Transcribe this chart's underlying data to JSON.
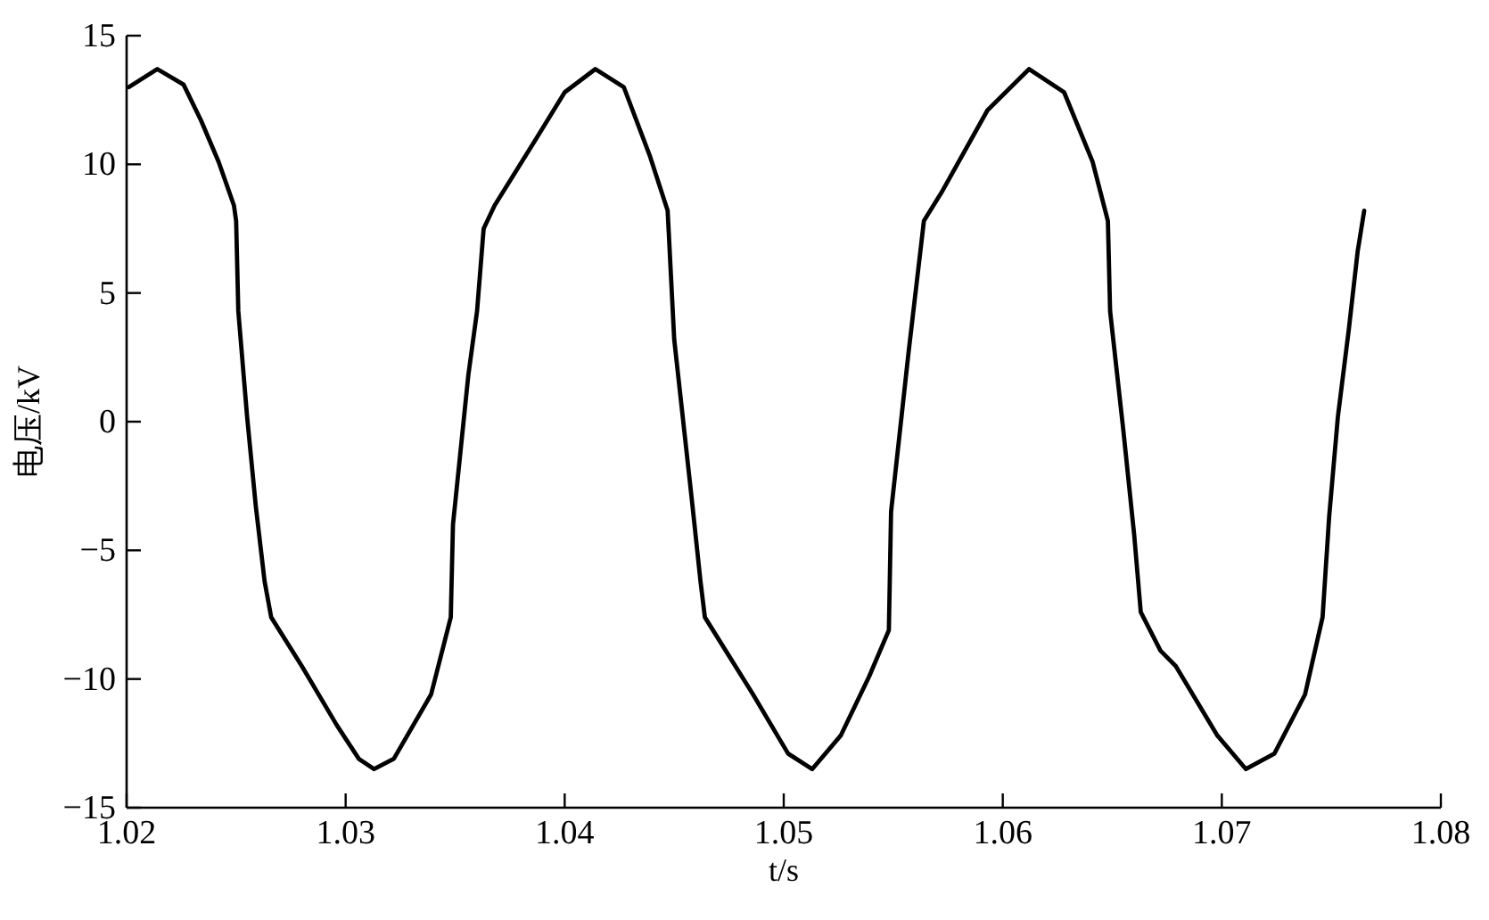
{
  "chart_data": {
    "type": "line",
    "xlabel": "t/s",
    "ylabel": "电压/kV",
    "xlim": [
      1.02,
      1.08
    ],
    "xticks": [
      1.02,
      1.03,
      1.04,
      1.05,
      1.06,
      1.07,
      1.08
    ],
    "ylim": [
      -15,
      15
    ],
    "yticks": [
      -15,
      -10,
      -5,
      0,
      5,
      10,
      15
    ],
    "grid": false,
    "marker": "none",
    "line_style": "solid",
    "series": [
      {
        "color": "#000000",
        "x": [
          1.0201,
          1.0214,
          1.0226,
          1.0234,
          1.0242,
          1.0249,
          1.025,
          1.0251,
          1.0255,
          1.0259,
          1.0263,
          1.0266,
          1.028,
          1.0296,
          1.0306,
          1.0313,
          1.0322,
          1.0339,
          1.0348,
          1.0349,
          1.0356,
          1.036,
          1.0363,
          1.0368,
          1.0387,
          1.04,
          1.0414,
          1.0427,
          1.0439,
          1.0447,
          1.045,
          1.0458,
          1.0462,
          1.0464,
          1.0486,
          1.0502,
          1.0513,
          1.0526,
          1.0539,
          1.0548,
          1.0549,
          1.0557,
          1.0564,
          1.0572,
          1.0593,
          1.0612,
          1.0628,
          1.0641,
          1.0648,
          1.0649,
          1.0655,
          1.066,
          1.0663,
          1.0672,
          1.0679,
          1.0698,
          1.0711,
          1.0724,
          1.0738,
          1.0746,
          1.0749,
          1.0753,
          1.0758,
          1.0762,
          1.0765
        ],
        "values": [
          13.0,
          13.7,
          13.1,
          11.7,
          10.1,
          8.4,
          7.8,
          4.3,
          0.2,
          -3.3,
          -6.2,
          -7.6,
          -9.5,
          -11.8,
          -13.1,
          -13.5,
          -13.1,
          -10.6,
          -7.6,
          -4.0,
          1.8,
          4.3,
          7.5,
          8.4,
          11.0,
          12.8,
          13.7,
          13.0,
          10.3,
          8.2,
          3.2,
          -3.0,
          -6.2,
          -7.6,
          -10.6,
          -12.9,
          -13.5,
          -12.2,
          -9.9,
          -8.1,
          -3.5,
          2.7,
          7.8,
          8.9,
          12.1,
          13.7,
          12.8,
          10.1,
          7.8,
          4.3,
          -0.3,
          -4.4,
          -7.4,
          -8.9,
          -9.5,
          -12.2,
          -13.5,
          -12.9,
          -10.6,
          -7.6,
          -3.7,
          0.2,
          3.6,
          6.6,
          8.2
        ]
      }
    ]
  }
}
